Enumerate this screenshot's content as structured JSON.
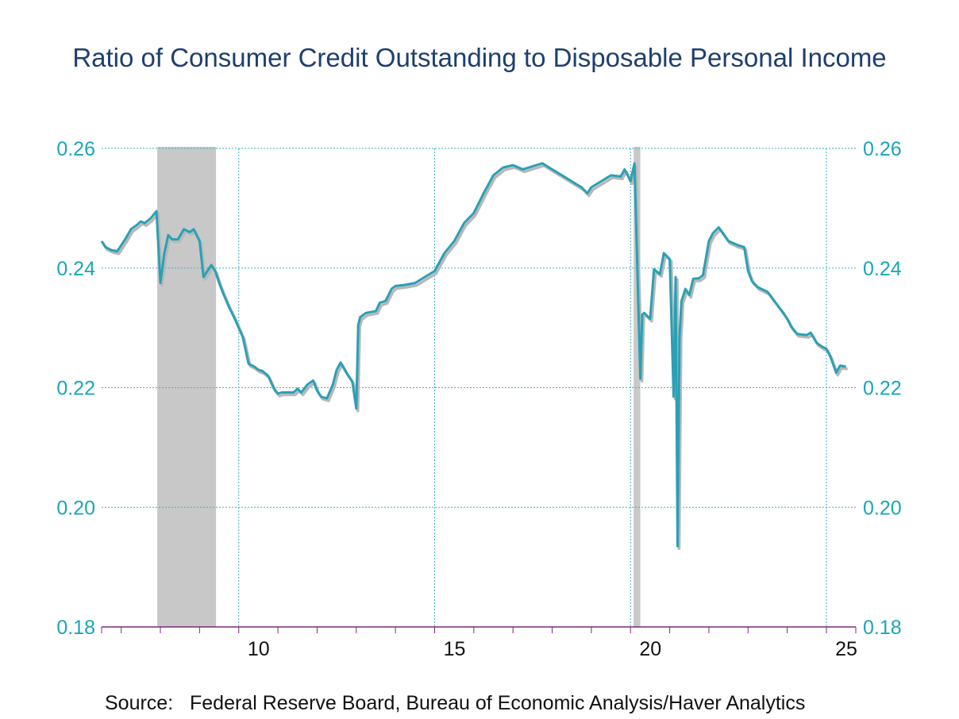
{
  "chart_data": {
    "type": "line",
    "title": "Ratio of Consumer Credit Outstanding to Disposable Personal Income",
    "source": "Source:   Federal Reserve Board, Bureau of Economic Analysis/Haver Analytics",
    "xlabel": "",
    "ylabel": "",
    "x_tick_labels": [
      "10",
      "15",
      "20",
      "25"
    ],
    "x_tick_years": [
      2010,
      2015,
      2020,
      2025
    ],
    "y_tick_labels": [
      "0.18",
      "0.20",
      "0.22",
      "0.24",
      "0.26"
    ],
    "xlim": [
      2006.5,
      2025.75
    ],
    "ylim": [
      0.18,
      0.26
    ],
    "grid": true,
    "recessions": [
      [
        2007.92,
        2009.42
      ],
      [
        2020.08,
        2020.25
      ]
    ],
    "colors": {
      "series": "#2aa0b4",
      "shadow": "#b8b8b8",
      "axis_text": "#1aa6b7",
      "grid": "#39b3c3",
      "recession": "#c8c8c8",
      "baseline": "#7b2a7b",
      "title": "#1d3f6e"
    },
    "series": [
      {
        "x": [
          2006.5,
          2006.6,
          2006.75,
          2006.9,
          2007.0,
          2007.1,
          2007.25,
          2007.4,
          2007.5,
          2007.6,
          2007.75,
          2007.9,
          2008.0,
          2008.1,
          2008.2,
          2008.3,
          2008.35,
          2008.45,
          2008.6,
          2008.75,
          2008.85,
          2009.0,
          2009.1,
          2009.2,
          2009.3,
          2009.4,
          2009.5,
          2009.6,
          2009.75,
          2009.9,
          2010.0,
          2010.1,
          2010.25,
          2010.4,
          2010.5,
          2010.6,
          2010.75,
          2010.9,
          2011.0,
          2011.1,
          2011.25,
          2011.4,
          2011.5,
          2011.6,
          2011.75,
          2011.9,
          2012.0,
          2012.1,
          2012.25,
          2012.4,
          2012.5,
          2012.6,
          2012.75,
          2012.9,
          2013.0,
          2013.05,
          2013.1,
          2013.25,
          2013.5,
          2013.6,
          2013.75,
          2013.9,
          2014.0,
          2014.25,
          2014.5,
          2014.75,
          2015.0,
          2015.25,
          2015.5,
          2015.75,
          2016.0,
          2016.25,
          2016.5,
          2016.75,
          2017.0,
          2017.25,
          2017.5,
          2017.75,
          2018.0,
          2018.25,
          2018.5,
          2018.75,
          2018.9,
          2019.0,
          2019.25,
          2019.5,
          2019.75,
          2019.85,
          2019.95,
          2020.0,
          2020.1,
          2020.25,
          2020.3,
          2020.35,
          2020.5,
          2020.6,
          2020.75,
          2020.85,
          2021.0,
          2021.1,
          2021.15,
          2021.2,
          2021.25,
          2021.3,
          2021.35,
          2021.4,
          2021.5,
          2021.6,
          2021.75,
          2021.85,
          2022.0,
          2022.1,
          2022.25,
          2022.5,
          2022.75,
          2022.9,
          2023.0,
          2023.1,
          2023.25,
          2023.5,
          2023.75,
          2023.9,
          2024.0,
          2024.1,
          2024.25,
          2024.5,
          2024.6,
          2024.75,
          2024.9,
          2025.0,
          2025.1,
          2025.25,
          2025.35,
          2025.5
        ],
        "y": [
          0.2445,
          0.2435,
          0.243,
          0.2428,
          0.2438,
          0.2448,
          0.2465,
          0.2472,
          0.2478,
          0.2475,
          0.2483,
          0.2495,
          0.2375,
          0.2425,
          0.2455,
          0.2448,
          0.2448,
          0.2448,
          0.2465,
          0.246,
          0.2465,
          0.2445,
          0.2385,
          0.2395,
          0.2405,
          0.2395,
          0.2375,
          0.2358,
          0.2335,
          0.2315,
          0.23,
          0.2285,
          0.224,
          0.2235,
          0.223,
          0.2228,
          0.222,
          0.2198,
          0.219,
          0.2192,
          0.2192,
          0.2192,
          0.2198,
          0.2192,
          0.2205,
          0.2212,
          0.2195,
          0.2185,
          0.2182,
          0.2205,
          0.223,
          0.2242,
          0.2225,
          0.221,
          0.2165,
          0.2305,
          0.2318,
          0.2325,
          0.2328,
          0.2342,
          0.2345,
          0.2365,
          0.237,
          0.2372,
          0.2375,
          0.2385,
          0.2395,
          0.2425,
          0.2445,
          0.2475,
          0.2492,
          0.2525,
          0.2555,
          0.2568,
          0.2572,
          0.2565,
          0.257,
          0.2575,
          0.2565,
          0.2555,
          0.2545,
          0.2535,
          0.2525,
          0.2535,
          0.2545,
          0.2555,
          0.2553,
          0.2565,
          0.2552,
          0.2545,
          0.2575,
          0.2215,
          0.2322,
          0.2325,
          0.2315,
          0.2398,
          0.239,
          0.2425,
          0.2415,
          0.2185,
          0.2385,
          0.1935,
          0.2285,
          0.2345,
          0.2355,
          0.2365,
          0.2355,
          0.2382,
          0.2383,
          0.2388,
          0.2445,
          0.2458,
          0.2468,
          0.2445,
          0.2438,
          0.2435,
          0.2395,
          0.2378,
          0.2368,
          0.236,
          0.2338,
          0.2325,
          0.2315,
          0.2302,
          0.229,
          0.2288,
          0.2292,
          0.2275,
          0.2268,
          0.2265,
          0.2252,
          0.2225,
          0.2237,
          0.2235
        ]
      }
    ]
  }
}
